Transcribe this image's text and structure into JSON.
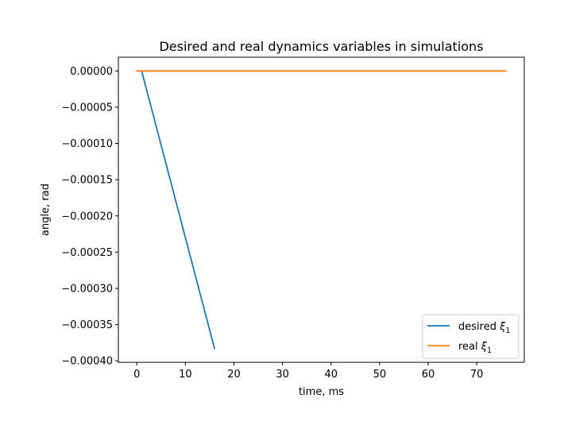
{
  "chart_data": {
    "type": "line",
    "title": "Desired and real dynamics variables in simulations",
    "xlabel": "time, ms",
    "ylabel": "angle, rad",
    "xlim": [
      -3.8,
      79.8
    ],
    "ylim": [
      -0.000402,
      1.9e-05
    ],
    "xticks": [
      0,
      10,
      20,
      30,
      40,
      50,
      60,
      70
    ],
    "xtick_labels": [
      "0",
      "10",
      "20",
      "30",
      "40",
      "50",
      "60",
      "70"
    ],
    "yticks": [
      0,
      -5e-05,
      -0.0001,
      -0.00015,
      -0.0002,
      -0.00025,
      -0.0003,
      -0.00035,
      -0.0004
    ],
    "ytick_labels": [
      "0.00000",
      "−0.00005",
      "−0.00010",
      "−0.00015",
      "−0.00020",
      "−0.00025",
      "−0.00030",
      "−0.00035",
      "−0.00040"
    ],
    "grid": false,
    "legend_position": "lower-right",
    "series": [
      {
        "name": "desired",
        "subscript_symbol": "ξ",
        "subscript": "1",
        "color": "#1f77b4",
        "x": [
          1,
          16
        ],
        "y": [
          0,
          -0.000383
        ]
      },
      {
        "name": "real",
        "subscript_symbol": "ξ",
        "subscript": "1",
        "color": "#ff7f0e",
        "x": [
          0,
          76
        ],
        "y": [
          0,
          0
        ]
      }
    ]
  }
}
